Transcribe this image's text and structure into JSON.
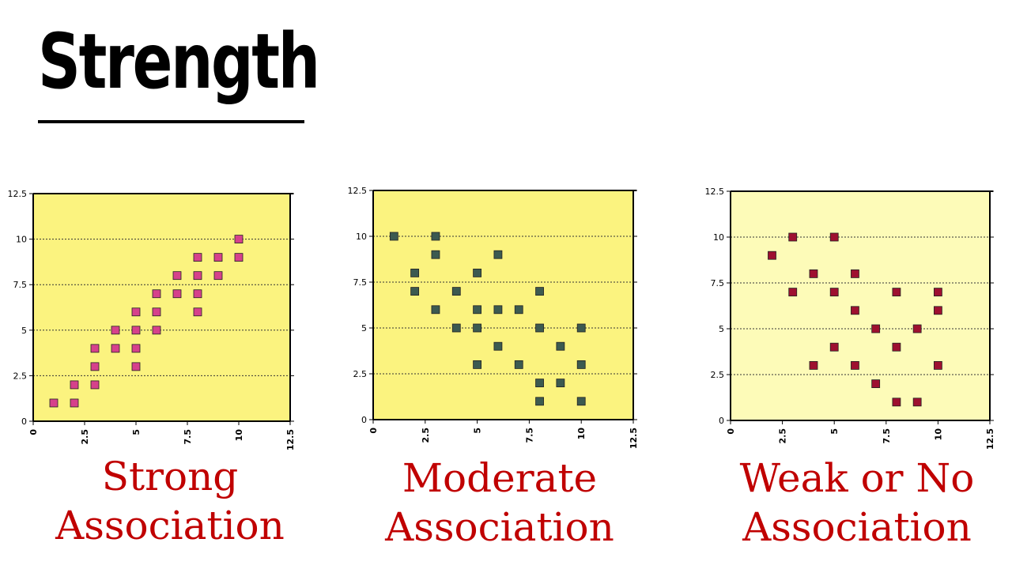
{
  "title": "Strength",
  "chart_data": [
    {
      "type": "scatter",
      "caption": [
        "Strong",
        "Association"
      ],
      "xlim": [
        0,
        12.5
      ],
      "ylim": [
        0,
        12.5
      ],
      "xticks": [
        0,
        2.5,
        5,
        7.5,
        10,
        12.5
      ],
      "yticks": [
        0,
        2.5,
        5,
        7.5,
        10,
        12.5
      ],
      "tick_labels": [
        "0",
        "2.5",
        "5",
        "7.5",
        "10",
        "12.5"
      ],
      "grid": "horizontal dotted",
      "plot_background": "#fbf37f",
      "marker_color": "#d6418b",
      "points": [
        [
          1,
          1
        ],
        [
          2,
          1
        ],
        [
          2,
          2
        ],
        [
          3,
          2
        ],
        [
          3,
          3
        ],
        [
          3,
          4
        ],
        [
          4,
          4
        ],
        [
          4,
          5
        ],
        [
          5,
          3
        ],
        [
          5,
          4
        ],
        [
          5,
          5
        ],
        [
          5,
          6
        ],
        [
          6,
          5
        ],
        [
          6,
          6
        ],
        [
          6,
          7
        ],
        [
          7,
          7
        ],
        [
          7,
          8
        ],
        [
          8,
          6
        ],
        [
          8,
          7
        ],
        [
          8,
          8
        ],
        [
          8,
          9
        ],
        [
          9,
          8
        ],
        [
          9,
          9
        ],
        [
          10,
          9
        ],
        [
          10,
          10
        ]
      ]
    },
    {
      "type": "scatter",
      "caption": [
        "Moderate",
        "Association"
      ],
      "xlim": [
        0,
        12.5
      ],
      "ylim": [
        0,
        12.5
      ],
      "xticks": [
        0,
        2.5,
        5,
        7.5,
        10,
        12.5
      ],
      "yticks": [
        0,
        2.5,
        5,
        7.5,
        10,
        12.5
      ],
      "tick_labels": [
        "0",
        "2.5",
        "5",
        "7.5",
        "10",
        "12.5"
      ],
      "grid": "horizontal dotted",
      "plot_background": "#fbf37f",
      "marker_color": "#3c5a50",
      "points": [
        [
          1,
          10
        ],
        [
          2,
          8
        ],
        [
          2,
          7
        ],
        [
          3,
          10
        ],
        [
          3,
          9
        ],
        [
          3,
          6
        ],
        [
          4,
          7
        ],
        [
          4,
          5
        ],
        [
          5,
          8
        ],
        [
          5,
          6
        ],
        [
          5,
          5
        ],
        [
          5,
          3
        ],
        [
          6,
          9
        ],
        [
          6,
          6
        ],
        [
          6,
          4
        ],
        [
          7,
          6
        ],
        [
          7,
          3
        ],
        [
          8,
          7
        ],
        [
          8,
          5
        ],
        [
          8,
          2
        ],
        [
          8,
          1
        ],
        [
          9,
          4
        ],
        [
          9,
          2
        ],
        [
          10,
          5
        ],
        [
          10,
          3
        ],
        [
          10,
          1
        ]
      ]
    },
    {
      "type": "scatter",
      "caption": [
        "Weak or No",
        "Association"
      ],
      "xlim": [
        0,
        12.5
      ],
      "ylim": [
        0,
        12.5
      ],
      "xticks": [
        0,
        2.5,
        5,
        7.5,
        10,
        12.5
      ],
      "yticks": [
        0,
        2.5,
        5,
        7.5,
        10,
        12.5
      ],
      "tick_labels": [
        "0",
        "2.5",
        "5",
        "7.5",
        "10",
        "12.5"
      ],
      "grid": "horizontal dotted",
      "plot_background": "#fdfbb8",
      "marker_color": "#9e1030",
      "points": [
        [
          2,
          9
        ],
        [
          3,
          10
        ],
        [
          3,
          7
        ],
        [
          4,
          8
        ],
        [
          4,
          3
        ],
        [
          5,
          10
        ],
        [
          5,
          7
        ],
        [
          5,
          4
        ],
        [
          6,
          8
        ],
        [
          6,
          6
        ],
        [
          6,
          3
        ],
        [
          7,
          5
        ],
        [
          7,
          2
        ],
        [
          8,
          7
        ],
        [
          8,
          4
        ],
        [
          8,
          1
        ],
        [
          9,
          5
        ],
        [
          9,
          1
        ],
        [
          10,
          7
        ],
        [
          10,
          6
        ],
        [
          10,
          3
        ]
      ]
    }
  ]
}
